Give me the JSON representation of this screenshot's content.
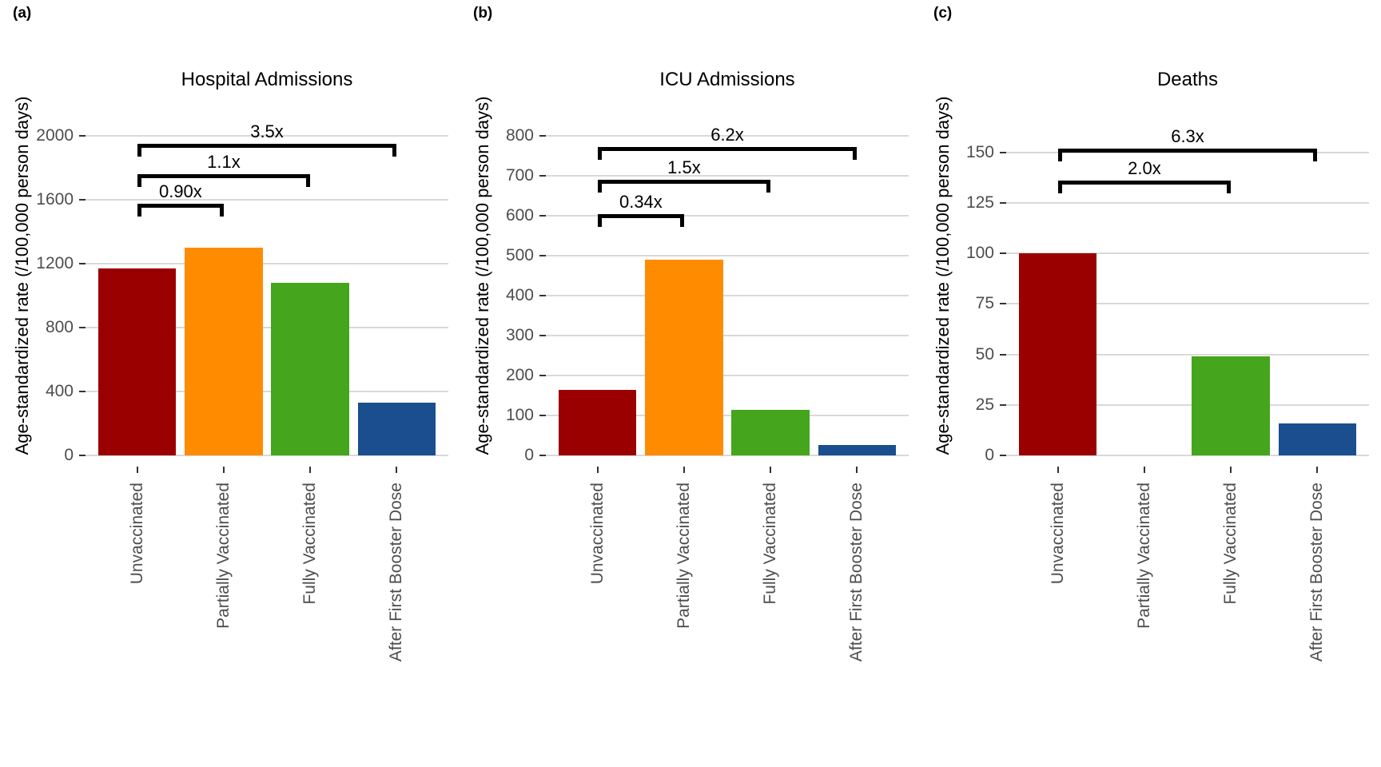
{
  "figure": {
    "background": "#ffffff",
    "y_axis_title": "Age-standardized rate (/100,000 person days)",
    "categories": [
      "Unvaccinated",
      "Partially Vaccinated",
      "Fully Vaccinated",
      "After First Booster Dose"
    ],
    "bar_colors": [
      "#9B0000",
      "#FF8C00",
      "#45A51D",
      "#1A4E8F"
    ],
    "gridline_color": "#D9D9D9",
    "tick_mark_color": "#333333",
    "tick_label_color": "#4D4D4D",
    "bracket_color": "#000000"
  },
  "chart_data": [
    {
      "type": "bar",
      "panel_label": "(a)",
      "title": "Hospital Admissions",
      "xlabel": "",
      "ylabel": "Age-standardized rate (/100,000 person days)",
      "categories": [
        "Unvaccinated",
        "Partially Vaccinated",
        "Fully Vaccinated",
        "After First Booster Dose"
      ],
      "values": [
        1170,
        1300,
        1080,
        330
      ],
      "yticks": [
        0,
        400,
        800,
        1200,
        1600,
        2000
      ],
      "ylim": [
        0,
        2250
      ],
      "grid": "horizontal-major",
      "legend": "none",
      "annotations": [
        {
          "label": "3.5x",
          "from_index": 0,
          "to_index": 3,
          "y": 1950
        },
        {
          "label": "1.1x",
          "from_index": 0,
          "to_index": 2,
          "y": 1760
        },
        {
          "label": "0.90x",
          "from_index": 0,
          "to_index": 1,
          "y": 1575
        }
      ]
    },
    {
      "type": "bar",
      "panel_label": "(b)",
      "title": "ICU Admissions",
      "xlabel": "",
      "ylabel": "Age-standardized rate (/100,000 person days)",
      "categories": [
        "Unvaccinated",
        "Partially Vaccinated",
        "Fully Vaccinated",
        "After First Booster Dose"
      ],
      "values": [
        165,
        490,
        115,
        27
      ],
      "yticks": [
        0,
        100,
        200,
        300,
        400,
        500,
        600,
        700,
        800
      ],
      "ylim": [
        0,
        900
      ],
      "grid": "horizontal-major",
      "legend": "none",
      "annotations": [
        {
          "label": "6.2x",
          "from_index": 0,
          "to_index": 3,
          "y": 772
        },
        {
          "label": "1.5x",
          "from_index": 0,
          "to_index": 2,
          "y": 690
        },
        {
          "label": "0.34x",
          "from_index": 0,
          "to_index": 1,
          "y": 605
        }
      ]
    },
    {
      "type": "bar",
      "panel_label": "(c)",
      "title": "Deaths",
      "xlabel": "",
      "ylabel": "Age-standardized rate (/100,000 person days)",
      "categories": [
        "Unvaccinated",
        "Partially Vaccinated",
        "Fully Vaccinated",
        "After First Booster Dose"
      ],
      "values": [
        100,
        0,
        49,
        16
      ],
      "yticks": [
        0,
        25,
        50,
        75,
        100,
        125,
        150
      ],
      "ylim": [
        0,
        178
      ],
      "grid": "horizontal-major",
      "legend": "none",
      "annotations": [
        {
          "label": "6.3x",
          "from_index": 0,
          "to_index": 3,
          "y": 152
        },
        {
          "label": "2.0x",
          "from_index": 0,
          "to_index": 2,
          "y": 136
        }
      ]
    }
  ]
}
